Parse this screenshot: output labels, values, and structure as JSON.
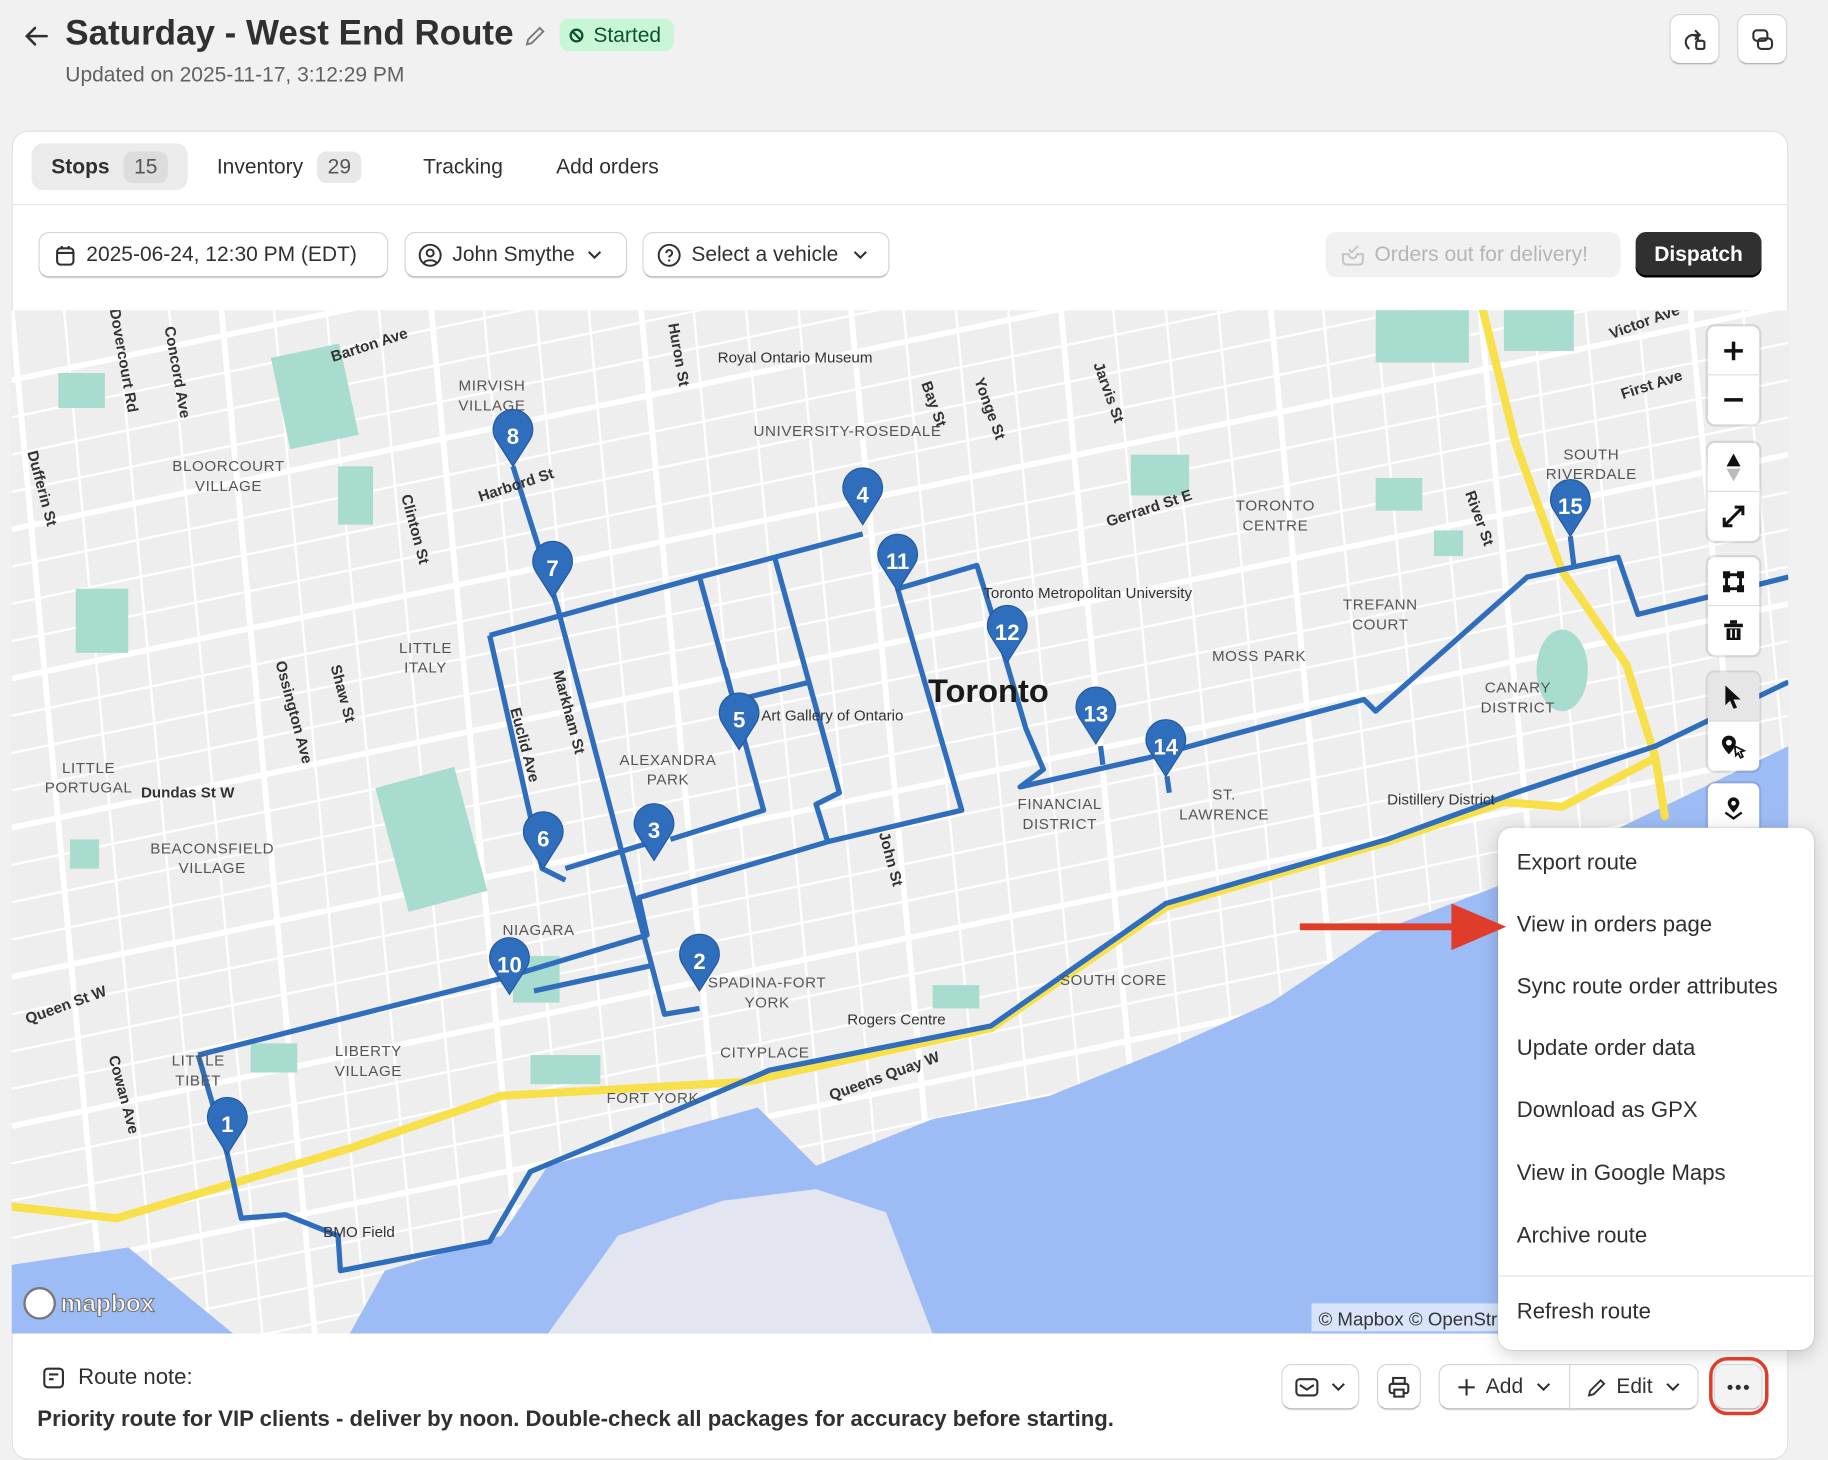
{
  "header": {
    "title": "Saturday - West End Route",
    "status": "Started",
    "updated": "Updated on 2025-11-17, 3:12:29 PM"
  },
  "tabs": [
    {
      "label": "Stops",
      "count": "15"
    },
    {
      "label": "Inventory",
      "count": "29"
    },
    {
      "label": "Tracking"
    },
    {
      "label": "Add orders"
    }
  ],
  "controls": {
    "datetime": "2025-06-24, 12:30 PM (EDT)",
    "driver": "John Smythe",
    "vehicle": "Select a vehicle",
    "orders_out": "Orders out for delivery!",
    "dispatch": "Dispatch"
  },
  "map": {
    "city_label": "Toronto",
    "stops": [
      "1",
      "2",
      "3",
      "4",
      "5",
      "6",
      "7",
      "8",
      "10",
      "11",
      "12",
      "13",
      "14",
      "15"
    ],
    "labels": [
      "MIRVISH VILLAGE",
      "BLOORCOURT VILLAGE",
      "LITTLE ITALY",
      "LITTLE PORTUGAL",
      "BEACONSFIELD VILLAGE",
      "ALEXANDRA PARK",
      "NIAGARA",
      "SPADINA-FORT YORK",
      "LIBERTY VILLAGE",
      "LITTLE TIBET",
      "CITYPLACE",
      "FORT YORK",
      "UNIVERSITY-ROSEDALE",
      "FINANCIAL DISTRICT",
      "ST. LAWRENCE",
      "SOUTH CORE",
      "TORONTO CENTRE",
      "MOSS PARK",
      "TREFANN COURT",
      "CANARY DISTRICT",
      "SOUTH RIVERDALE",
      "Royal Ontario Museum",
      "Art Gallery of Ontario",
      "Toronto Metropolitan University",
      "Rogers Centre",
      "BMO Field",
      "Distillery District",
      "Barton Ave",
      "Harbord St",
      "Dundas St W",
      "Queen St W",
      "Queens Quay W",
      "Gerrard St E",
      "Victor Ave",
      "First Ave",
      "River St",
      "Bay St",
      "Yonge St",
      "Jarvis St",
      "Huron St",
      "John St",
      "Markham St",
      "Clinton St",
      "Ossington Ave",
      "Shaw St",
      "Dovercourt Rd",
      "Concord Ave",
      "Dufferin St",
      "Cowan Ave",
      "Euclid Ave"
    ],
    "attribution": "© Mapbox © OpenStreetMap",
    "logo": "mapbox"
  },
  "menu": {
    "items": [
      "Export route",
      "View in orders page",
      "Sync route order attributes",
      "Update order data",
      "Download as GPX",
      "View in Google Maps",
      "Archive route"
    ],
    "footer_item": "Refresh route"
  },
  "footer": {
    "note_label": "Route note:",
    "note": "Priority route for VIP clients - deliver by noon. Double-check all packages for accuracy before starting.",
    "add": "Add",
    "edit": "Edit"
  },
  "colors": {
    "route": "#2f6dbd",
    "highway": "#f8e04a",
    "water": "#9dbcf5",
    "park": "#a8dccf",
    "annotation": "#e03c2a",
    "status_bg": "#c9f7d6"
  }
}
